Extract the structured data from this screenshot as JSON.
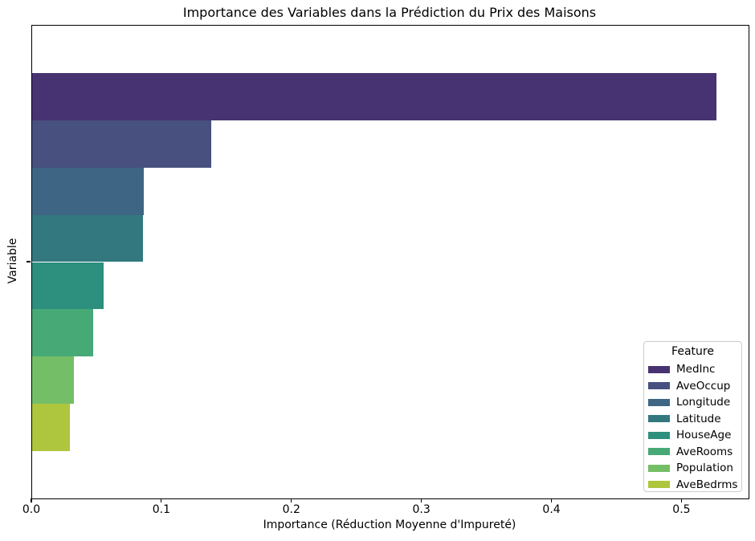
{
  "chart_data": {
    "type": "bar",
    "orientation": "horizontal",
    "title": "Importance des Variables dans la Prédiction du Prix des Maisons",
    "xlabel": "Importance (Réduction Moyenne d'Impureté)",
    "ylabel": "Variable",
    "legend_title": "Feature",
    "legend_position": "lower right",
    "grid": false,
    "xlim": [
      0,
      0.551
    ],
    "xtick_labels": [
      "0.0",
      "0.1",
      "0.2",
      "0.3",
      "0.4",
      "0.5"
    ],
    "categories": [
      "MedInc",
      "AveOccup",
      "Longitude",
      "Latitude",
      "HouseAge",
      "AveRooms",
      "Population",
      "AveBedrms"
    ],
    "values": [
      0.526,
      0.138,
      0.086,
      0.085,
      0.055,
      0.047,
      0.032,
      0.029
    ],
    "colors": [
      "#483372",
      "#47507e",
      "#3e6684",
      "#33787f",
      "#2d8f7d",
      "#46a976",
      "#74be67",
      "#adc63d"
    ]
  }
}
